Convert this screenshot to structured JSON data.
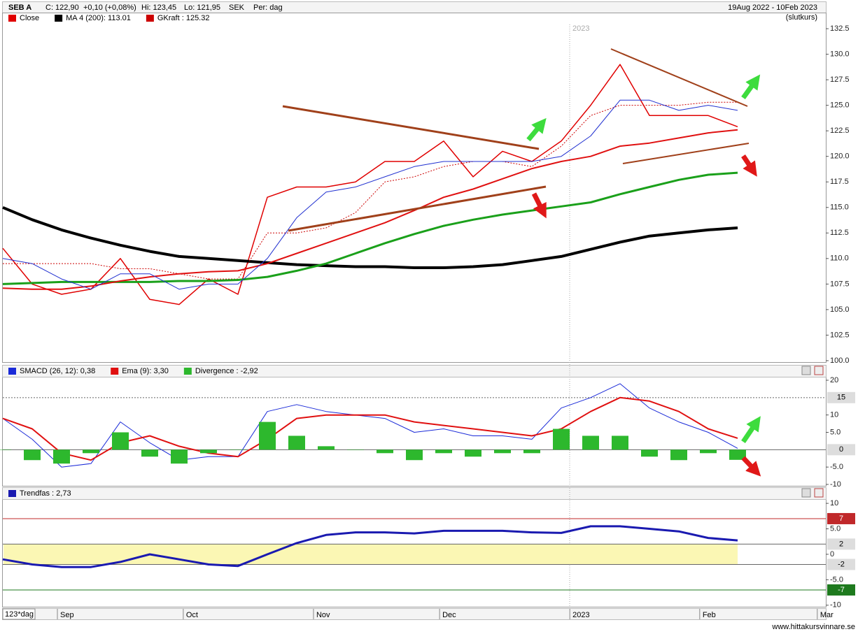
{
  "header": {
    "symbol": "SEB A",
    "close": "C: 122,90",
    "change": "+0,10 (+0,08%)",
    "high": "Hi: 123,45",
    "low": "Lo: 121,95",
    "currency": "SEK",
    "period": "Per: dag",
    "range": "19Aug 2022 - 10Feb 2023",
    "price_basis": "(slutkurs)",
    "year_marker": "2023",
    "days_label": "123*dag",
    "footer": "www.hittakursvinnare.se"
  },
  "chart_data": [
    {
      "type": "line",
      "x": [
        0,
        1,
        2,
        3,
        4,
        5,
        6,
        7,
        8,
        9,
        10,
        11,
        12,
        13,
        14,
        15,
        16,
        17,
        18,
        19,
        20,
        21,
        22,
        23,
        24,
        25
      ],
      "xlim": [
        0,
        28
      ],
      "ylim": [
        99.86,
        133.94
      ],
      "yticks": [
        132.5,
        {
          "value": 130,
          "label": "130.0"
        },
        127.5,
        {
          "value": 125,
          "label": "125.0"
        },
        122.5,
        {
          "value": 120,
          "label": "120.0"
        },
        117.5,
        {
          "value": 115,
          "label": "115.0"
        },
        112.5,
        {
          "value": 110,
          "label": "110.0"
        },
        107.5,
        {
          "value": 105,
          "label": "105.0"
        },
        102.5,
        {
          "value": 100,
          "label": "100.0"
        }
      ],
      "series": [
        {
          "name": "Close",
          "color": "#e00000",
          "width": 1.5,
          "values": [
            111,
            107.5,
            106.5,
            107,
            110,
            106,
            105.5,
            108,
            106.5,
            116,
            117,
            117,
            117.5,
            119.5,
            119.5,
            121.5,
            118,
            120.5,
            119.5,
            121.5,
            125,
            129,
            124,
            124,
            124,
            122.9
          ]
        },
        {
          "name": "MA 4 (200): 113.01",
          "color": "#000000",
          "width": 4,
          "values": [
            115,
            113.8,
            112.8,
            112,
            111.3,
            110.7,
            110.2,
            110,
            109.8,
            109.6,
            109.4,
            109.3,
            109.2,
            109.2,
            109.1,
            109.1,
            109.2,
            109.4,
            109.8,
            110.2,
            110.9,
            111.6,
            112.2,
            112.5,
            112.8,
            113
          ]
        },
        {
          "name": "GKraft : 125.32",
          "color": "#cc0000",
          "width": 1,
          "dash": true,
          "values": [
            109.5,
            109.5,
            109.5,
            109.5,
            109,
            109,
            108.5,
            108,
            108,
            112.5,
            112.5,
            113,
            114.5,
            117.5,
            118,
            119,
            119.5,
            119.5,
            119,
            121,
            124,
            125,
            125,
            125,
            125.3,
            125.3
          ]
        },
        {
          "color": "#1aa01a",
          "width": 3,
          "values": [
            107.5,
            107.6,
            107.7,
            107.7,
            107.7,
            107.7,
            107.8,
            107.8,
            107.9,
            108.2,
            108.8,
            109.5,
            110.5,
            111.5,
            112.4,
            113.2,
            113.8,
            114.3,
            114.7,
            115.1,
            115.5,
            116.3,
            117,
            117.7,
            118.2,
            118.4
          ]
        },
        {
          "color": "#e01010",
          "width": 2,
          "values": [
            107.1,
            107,
            107,
            107.3,
            107.8,
            108.2,
            108.5,
            108.7,
            108.8,
            109.5,
            110.5,
            111.5,
            112.5,
            113.5,
            114.7,
            116,
            116.8,
            117.8,
            118.8,
            119.5,
            120,
            121,
            121.3,
            121.8,
            122.3,
            122.6
          ]
        },
        {
          "color": "#2030d0",
          "width": 1,
          "values": [
            110,
            109.5,
            108,
            107,
            108.5,
            108.5,
            107,
            107.5,
            107.5,
            110,
            114,
            116.5,
            117,
            118,
            119,
            119.5,
            119.5,
            119.5,
            119.5,
            120,
            122,
            125.5,
            125.5,
            124.5,
            125,
            124.5
          ]
        }
      ]
    },
    {
      "type": "line",
      "x": [
        0,
        1,
        2,
        3,
        4,
        5,
        6,
        7,
        8,
        9,
        10,
        11,
        12,
        13,
        14,
        15,
        16,
        17,
        18,
        19,
        20,
        21,
        22,
        23,
        24,
        25
      ],
      "xlim": [
        0,
        28
      ],
      "ylim": [
        -10.4,
        20.8
      ],
      "yticks": [
        20,
        10,
        {
          "value": 5,
          "label": "5.0"
        },
        {
          "value": -5,
          "label": "-5.0"
        },
        -10
      ],
      "levels": [
        15,
        0
      ],
      "level_colors": [
        "#dddddd",
        "#dddddd"
      ],
      "series": [
        {
          "name": "SMACD (26, 12): 0,38",
          "color": "#1a2ad8",
          "width": 1,
          "values": [
            9,
            3,
            -5,
            -4,
            8,
            2,
            -3,
            -2,
            -2,
            11,
            13,
            11,
            10,
            9,
            5,
            6,
            4,
            4,
            3,
            12,
            15,
            19,
            12,
            8,
            5,
            0.38
          ]
        },
        {
          "name": "Ema (9): 3,30",
          "color": "#e01010",
          "width": 2,
          "values": [
            9,
            6,
            -1,
            -3,
            2,
            4,
            1,
            -1,
            -2,
            3,
            9,
            10,
            10,
            10,
            8,
            7,
            6,
            5,
            4,
            6,
            11,
            15,
            14,
            11,
            6,
            3.3
          ]
        },
        {
          "name": "Divergence : -2,92",
          "color": "#2db82d",
          "bar": true,
          "values": [
            0,
            -3,
            -4,
            -1,
            5,
            -2,
            -4,
            -1,
            0,
            8,
            4,
            1,
            0,
            -1,
            -3,
            -1,
            -2,
            -1,
            -1,
            6,
            4,
            4,
            -2,
            -3,
            -1,
            -2.92
          ]
        }
      ]
    },
    {
      "type": "line",
      "x": [
        0,
        1,
        2,
        3,
        4,
        5,
        6,
        7,
        8,
        9,
        10,
        11,
        12,
        13,
        14,
        15,
        16,
        17,
        18,
        19,
        20,
        21,
        22,
        23,
        24,
        25
      ],
      "xlim": [
        0,
        28
      ],
      "xticks": [
        {
          "value": 1.857,
          "label": "Sep"
        },
        {
          "value": 6.14,
          "label": "Oct"
        },
        {
          "value": 10.57,
          "label": "Nov"
        },
        {
          "value": 14.86,
          "label": "Dec"
        },
        {
          "value": 19.29,
          "label": "2023"
        },
        {
          "value": 23.71,
          "label": "Feb"
        },
        {
          "value": 27.71,
          "label": "Mar"
        }
      ],
      "ylim": [
        -10.3,
        10.7
      ],
      "yticks": [
        10,
        {
          "value": 5,
          "label": "5.0"
        },
        0,
        {
          "value": -5,
          "label": "-5.0"
        },
        -10
      ],
      "levels": [
        7,
        2,
        -2,
        -7
      ],
      "level_colors": [
        "#c0282a",
        "#dddddd",
        "#dddddd",
        "#1e7a1e"
      ],
      "band": [
        -2,
        2
      ],
      "band_color": "#fbf7b4",
      "series": [
        {
          "name": "Trendfas : 2,73",
          "color": "#1a1ab0",
          "width": 3,
          "values": [
            -1,
            -2,
            -2.5,
            -2.5,
            -1.5,
            0,
            -1,
            -2,
            -2.3,
            0,
            2.2,
            3.8,
            4.3,
            4.3,
            4.1,
            4.6,
            4.6,
            4.6,
            4.3,
            4.2,
            5.5,
            5.5,
            5,
            4.5,
            3.2,
            2.73
          ]
        }
      ]
    }
  ]
}
